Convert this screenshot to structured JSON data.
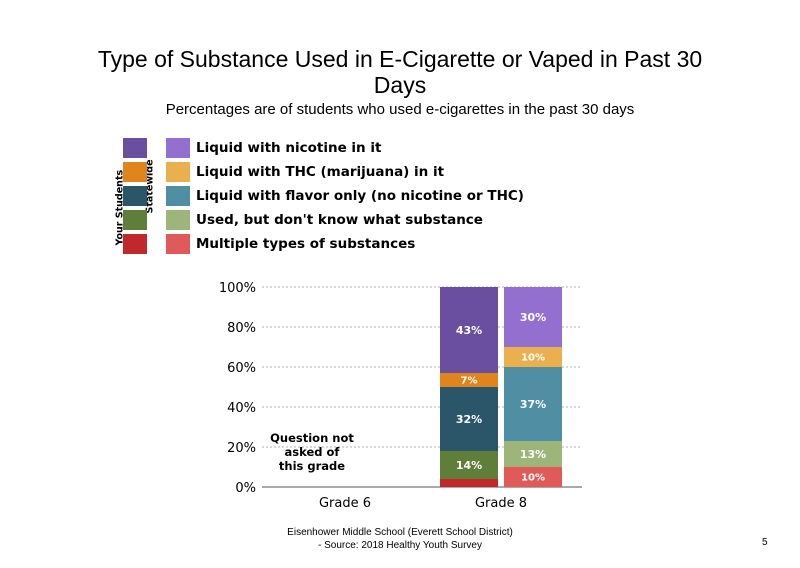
{
  "title": "Type of Substance Used in E-Cigarette or Vaped in Past 30 Days",
  "subtitle": "Percentages are of students who used e-cigarettes in the past 30 days",
  "legend": {
    "group_labels": [
      "Your Students",
      "Statewide"
    ],
    "items": [
      {
        "label": "Liquid with nicotine in it",
        "your_color": "#6a4fa0",
        "state_color": "#9370d0"
      },
      {
        "label": "Liquid with THC (marijuana) in it",
        "your_color": "#e0841e",
        "state_color": "#eab04e"
      },
      {
        "label": "Liquid with flavor only (no nicotine or THC)",
        "your_color": "#2b5568",
        "state_color": "#4f8ea3"
      },
      {
        "label": "Used, but don't know what substance",
        "your_color": "#5e7e3a",
        "state_color": "#9db57a"
      },
      {
        "label": "Multiple types of substances",
        "your_color": "#c0282c",
        "state_color": "#e05a5a"
      }
    ]
  },
  "chart_data": {
    "type": "bar",
    "stacked": true,
    "ylim": [
      0,
      100
    ],
    "y_ticks": [
      "0%",
      "20%",
      "40%",
      "60%",
      "80%",
      "100%"
    ],
    "categories": [
      "Grade 6",
      "Grade 8"
    ],
    "grade6_note": [
      "Question not",
      "asked of",
      "this grade"
    ],
    "bars": [
      {
        "category": "Grade 8",
        "group": "Your Students",
        "segments": [
          {
            "series": "Multiple types of substances",
            "value": 4,
            "label": ""
          },
          {
            "series": "Used, but don't know what substance",
            "value": 14,
            "label": "14%"
          },
          {
            "series": "Liquid with flavor only (no nicotine or THC)",
            "value": 32,
            "label": "32%"
          },
          {
            "series": "Liquid with THC (marijuana) in it",
            "value": 7,
            "label": "7%"
          },
          {
            "series": "Liquid with nicotine in it",
            "value": 43,
            "label": "43%"
          }
        ]
      },
      {
        "category": "Grade 8",
        "group": "Statewide",
        "segments": [
          {
            "series": "Multiple types of substances",
            "value": 10,
            "label": "10%"
          },
          {
            "series": "Used, but don't know what substance",
            "value": 13,
            "label": "13%"
          },
          {
            "series": "Liquid with flavor only (no nicotine or THC)",
            "value": 37,
            "label": "37%"
          },
          {
            "series": "Liquid with THC (marijuana) in it",
            "value": 10,
            "label": "10%"
          },
          {
            "series": "Liquid with nicotine in it",
            "value": 30,
            "label": "30%"
          }
        ]
      }
    ],
    "grid": true
  },
  "footer": {
    "line1": "Eisenhower Middle School (Everett School District)",
    "line2": "- Source: 2018 Healthy Youth Survey"
  },
  "page_number": "5"
}
